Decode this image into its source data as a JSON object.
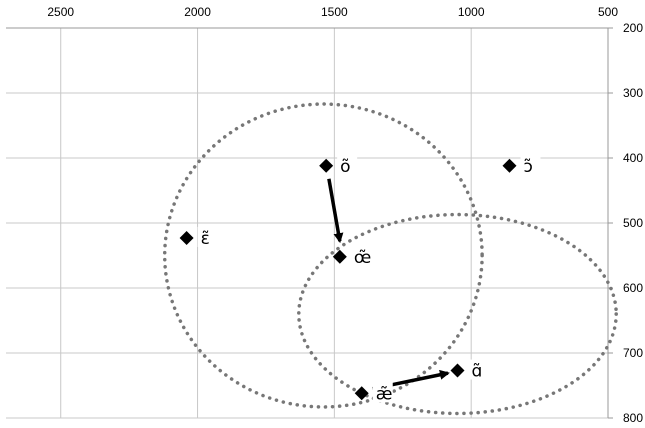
{
  "chart_data": {
    "type": "scatter",
    "title": "",
    "xlabel": "",
    "ylabel": "",
    "x_axis": {
      "reversed": true,
      "position": "top",
      "range": [
        2700,
        500
      ],
      "ticks": [
        2500,
        2000,
        1500,
        1000,
        500
      ]
    },
    "y_axis": {
      "reversed": true,
      "position": "right",
      "range": [
        200,
        800
      ],
      "ticks": [
        200,
        300,
        400,
        500,
        600,
        700,
        800
      ]
    },
    "grid": true,
    "points": [
      {
        "label": "õ",
        "x": 1530,
        "y": 412
      },
      {
        "label": "ɔ̃",
        "x": 860,
        "y": 412
      },
      {
        "label": "ɛ̃",
        "x": 2040,
        "y": 523
      },
      {
        "label": "œ̃",
        "x": 1480,
        "y": 552
      },
      {
        "label": "ɑ̃",
        "x": 1050,
        "y": 727
      },
      {
        "label": "æ̃",
        "x": 1400,
        "y": 762
      }
    ],
    "arrows": [
      {
        "from": [
          1520,
          432
        ],
        "to": [
          1480,
          528
        ]
      },
      {
        "from": [
          1360,
          755
        ],
        "to": [
          1085,
          731
        ]
      }
    ],
    "ellipses": [
      {
        "cx": 1540,
        "cy": 550,
        "rx": 580,
        "ry": 233
      },
      {
        "cx": 1050,
        "cy": 640,
        "rx": 580,
        "ry": 153
      }
    ]
  }
}
